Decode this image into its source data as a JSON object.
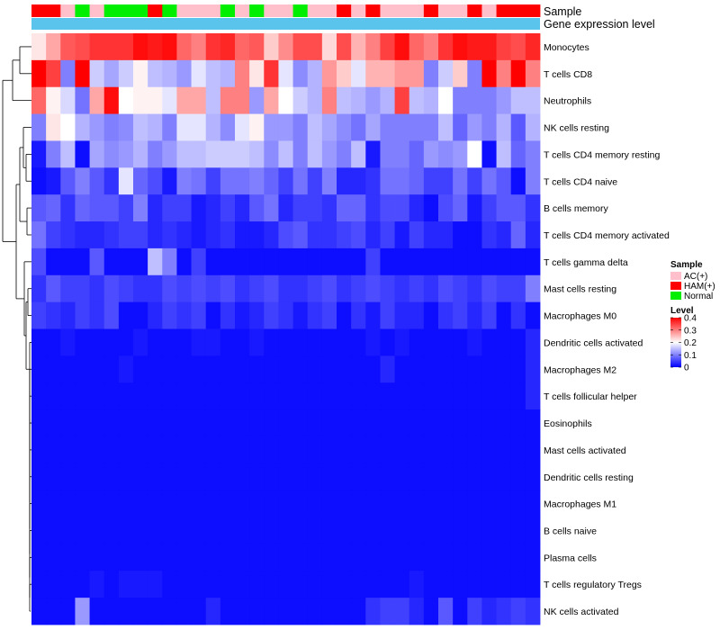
{
  "chart_data": {
    "type": "heatmap",
    "annotation_labels": {
      "sample": "Sample",
      "expression": "Gene expression level"
    },
    "rows": [
      "Monocytes",
      "T cells CD8",
      "Neutrophils",
      "NK cells resting",
      "T cells CD4 memory resting",
      "T cells CD4 naive",
      "B cells memory",
      "T cells CD4 memory activated",
      "T cells gamma delta",
      "Mast cells resting",
      "Macrophages M0",
      "Dendritic cells activated",
      "Macrophages M2",
      "T cells follicular helper",
      "Eosinophils",
      "Mast cells activated",
      "Dendritic cells resting",
      "Macrophages M1",
      "B cells naive",
      "Plasma cells",
      "T cells regulatory  Tregs",
      "NK cells activated"
    ],
    "sample_groups": [
      "HAM",
      "HAM",
      "AC",
      "Normal",
      "AC",
      "Normal",
      "Normal",
      "Normal",
      "HAM",
      "Normal",
      "AC",
      "AC",
      "AC",
      "Normal",
      "AC",
      "Normal",
      "AC",
      "AC",
      "Normal",
      "AC",
      "AC",
      "HAM",
      "AC",
      "HAM",
      "AC",
      "AC",
      "AC",
      "HAM",
      "AC",
      "AC",
      "HAM",
      "AC",
      "HAM",
      "HAM",
      "HAM"
    ],
    "values": [
      [
        0.22,
        0.27,
        0.33,
        0.34,
        0.36,
        0.36,
        0.36,
        0.39,
        0.38,
        0.39,
        0.32,
        0.3,
        0.36,
        0.37,
        0.32,
        0.33,
        0.24,
        0.29,
        0.34,
        0.34,
        0.23,
        0.34,
        0.26,
        0.3,
        0.35,
        0.39,
        0.32,
        0.3,
        0.36,
        0.39,
        0.38,
        0.38,
        0.35,
        0.34,
        0.37
      ],
      [
        0.42,
        0.35,
        0.1,
        0.42,
        0.16,
        0.13,
        0.16,
        0.21,
        0.15,
        0.14,
        0.12,
        0.18,
        0.15,
        0.14,
        0.3,
        0.22,
        0.36,
        0.18,
        0.11,
        0.14,
        0.28,
        0.24,
        0.18,
        0.26,
        0.26,
        0.28,
        0.28,
        0.1,
        0.16,
        0.24,
        0.1,
        0.4,
        0.3,
        0.4,
        0.3
      ],
      [
        0.32,
        0.21,
        0.17,
        0.09,
        0.27,
        0.39,
        0.2,
        0.21,
        0.21,
        0.18,
        0.27,
        0.27,
        0.15,
        0.3,
        0.3,
        0.12,
        0.27,
        0.2,
        0.16,
        0.14,
        0.3,
        0.15,
        0.14,
        0.12,
        0.14,
        0.35,
        0.15,
        0.14,
        0.2,
        0.1,
        0.1,
        0.1,
        0.12,
        0.15,
        0.15
      ],
      [
        0.1,
        0.22,
        0.2,
        0.14,
        0.12,
        0.1,
        0.11,
        0.15,
        0.14,
        0.1,
        0.18,
        0.18,
        0.14,
        0.11,
        0.18,
        0.21,
        0.12,
        0.12,
        0.1,
        0.15,
        0.13,
        0.11,
        0.09,
        0.13,
        0.1,
        0.1,
        0.1,
        0.1,
        0.15,
        0.08,
        0.12,
        0.1,
        0.14,
        0.07,
        0.14
      ],
      [
        0.02,
        0.1,
        0.15,
        0.01,
        0.13,
        0.11,
        0.12,
        0.14,
        0.1,
        0.12,
        0.15,
        0.15,
        0.16,
        0.16,
        0.16,
        0.15,
        0.11,
        0.15,
        0.1,
        0.15,
        0.12,
        0.1,
        0.15,
        0.02,
        0.1,
        0.1,
        0.08,
        0.12,
        0.11,
        0.12,
        0.2,
        0.01,
        0.15,
        0.08,
        0.1
      ],
      [
        0.01,
        0.02,
        0.07,
        0.1,
        0.07,
        0.04,
        0.18,
        0.08,
        0.06,
        0.02,
        0.1,
        0.09,
        0.05,
        0.09,
        0.09,
        0.1,
        0.08,
        0.05,
        0.09,
        0.05,
        0.1,
        0.03,
        0.03,
        0.04,
        0.09,
        0.09,
        0.08,
        0.05,
        0.05,
        0.09,
        0.05,
        0.09,
        0.07,
        0.01,
        0.1
      ],
      [
        0.07,
        0.08,
        0.04,
        0.08,
        0.07,
        0.07,
        0.05,
        0.1,
        0.03,
        0.05,
        0.05,
        0.02,
        0.03,
        0.05,
        0.03,
        0.07,
        0.09,
        0.03,
        0.05,
        0.05,
        0.04,
        0.08,
        0.08,
        0.04,
        0.06,
        0.06,
        0.03,
        0.01,
        0.06,
        0.08,
        0.02,
        0.05,
        0.07,
        0.07,
        0.04
      ],
      [
        0.09,
        0.05,
        0.04,
        0.03,
        0.03,
        0.04,
        0.05,
        0.05,
        0.03,
        0.04,
        0.03,
        0.02,
        0.03,
        0.04,
        0.02,
        0.02,
        0.03,
        0.06,
        0.07,
        0.04,
        0.04,
        0.05,
        0.06,
        0.03,
        0.05,
        0.02,
        0.05,
        0.03,
        0.03,
        0.01,
        0.01,
        0.04,
        0.03,
        0.08,
        0.03
      ],
      [
        0.06,
        0.01,
        0.01,
        0.01,
        0.07,
        0.01,
        0.01,
        0.01,
        0.15,
        0.1,
        0.01,
        0.05,
        0.01,
        0.01,
        0.01,
        0.01,
        0.01,
        0.01,
        0.01,
        0.01,
        0.01,
        0.01,
        0.01,
        0.05,
        0.01,
        0.01,
        0.01,
        0.01,
        0.01,
        0.01,
        0.01,
        0.01,
        0.01,
        0.01,
        0.01
      ],
      [
        0.04,
        0.07,
        0.05,
        0.05,
        0.04,
        0.06,
        0.05,
        0.04,
        0.04,
        0.06,
        0.05,
        0.06,
        0.05,
        0.06,
        0.04,
        0.05,
        0.06,
        0.04,
        0.04,
        0.05,
        0.06,
        0.04,
        0.05,
        0.06,
        0.05,
        0.04,
        0.05,
        0.04,
        0.06,
        0.05,
        0.04,
        0.06,
        0.05,
        0.05,
        0.1
      ],
      [
        0.05,
        0.04,
        0.03,
        0.05,
        0.04,
        0.06,
        0.01,
        0.01,
        0.03,
        0.05,
        0.04,
        0.05,
        0.01,
        0.04,
        0.02,
        0.03,
        0.05,
        0.04,
        0.02,
        0.04,
        0.05,
        0.01,
        0.04,
        0.02,
        0.05,
        0.03,
        0.03,
        0.01,
        0.04,
        0.05,
        0.03,
        0.05,
        0.01,
        0.04,
        0.01
      ],
      [
        0.01,
        0.01,
        0.02,
        0.01,
        0.01,
        0.01,
        0.01,
        0.02,
        0.01,
        0.01,
        0.01,
        0.02,
        0.02,
        0.01,
        0.01,
        0.02,
        0.01,
        0.01,
        0.01,
        0.01,
        0.01,
        0.01,
        0.01,
        0.02,
        0.01,
        0.02,
        0.01,
        0.01,
        0.01,
        0.01,
        0.02,
        0.01,
        0.01,
        0.01,
        0.03
      ],
      [
        0.01,
        0.01,
        0.01,
        0.01,
        0.01,
        0.01,
        0.02,
        0.01,
        0.01,
        0.01,
        0.01,
        0.01,
        0.01,
        0.01,
        0.01,
        0.01,
        0.01,
        0.01,
        0.01,
        0.01,
        0.01,
        0.01,
        0.01,
        0.01,
        0.03,
        0.01,
        0.01,
        0.01,
        0.01,
        0.01,
        0.01,
        0.01,
        0.01,
        0.01,
        0.03
      ],
      [
        0.01,
        0.01,
        0.01,
        0.01,
        0.01,
        0.01,
        0.01,
        0.01,
        0.01,
        0.01,
        0.01,
        0.01,
        0.01,
        0.01,
        0.01,
        0.01,
        0.01,
        0.01,
        0.01,
        0.01,
        0.01,
        0.01,
        0.01,
        0.01,
        0.01,
        0.01,
        0.01,
        0.01,
        0.01,
        0.01,
        0.01,
        0.01,
        0.01,
        0.01,
        0.03
      ],
      [
        0.01,
        0.01,
        0.01,
        0.01,
        0.01,
        0.01,
        0.01,
        0.01,
        0.01,
        0.01,
        0.01,
        0.01,
        0.01,
        0.01,
        0.01,
        0.01,
        0.01,
        0.01,
        0.01,
        0.01,
        0.01,
        0.01,
        0.01,
        0.01,
        0.01,
        0.01,
        0.01,
        0.01,
        0.01,
        0.01,
        0.01,
        0.01,
        0.01,
        0.01,
        0.01
      ],
      [
        0.01,
        0.01,
        0.01,
        0.01,
        0.01,
        0.01,
        0.01,
        0.01,
        0.01,
        0.01,
        0.01,
        0.01,
        0.01,
        0.01,
        0.01,
        0.01,
        0.01,
        0.01,
        0.01,
        0.01,
        0.01,
        0.01,
        0.01,
        0.01,
        0.01,
        0.01,
        0.01,
        0.01,
        0.01,
        0.01,
        0.01,
        0.01,
        0.01,
        0.01,
        0.01
      ],
      [
        0.01,
        0.01,
        0.01,
        0.01,
        0.01,
        0.01,
        0.01,
        0.01,
        0.01,
        0.01,
        0.01,
        0.01,
        0.01,
        0.01,
        0.01,
        0.01,
        0.01,
        0.01,
        0.01,
        0.01,
        0.01,
        0.01,
        0.01,
        0.01,
        0.01,
        0.01,
        0.01,
        0.01,
        0.01,
        0.01,
        0.01,
        0.01,
        0.01,
        0.01,
        0.01
      ],
      [
        0.01,
        0.01,
        0.01,
        0.01,
        0.01,
        0.01,
        0.01,
        0.01,
        0.01,
        0.01,
        0.01,
        0.01,
        0.01,
        0.01,
        0.01,
        0.01,
        0.01,
        0.01,
        0.01,
        0.01,
        0.01,
        0.01,
        0.01,
        0.01,
        0.01,
        0.01,
        0.01,
        0.01,
        0.01,
        0.01,
        0.01,
        0.01,
        0.01,
        0.01,
        0.01
      ],
      [
        0.01,
        0.01,
        0.01,
        0.01,
        0.01,
        0.01,
        0.01,
        0.01,
        0.01,
        0.01,
        0.01,
        0.01,
        0.01,
        0.01,
        0.01,
        0.01,
        0.01,
        0.01,
        0.01,
        0.01,
        0.01,
        0.01,
        0.01,
        0.01,
        0.01,
        0.01,
        0.01,
        0.01,
        0.01,
        0.01,
        0.01,
        0.01,
        0.01,
        0.01,
        0.01
      ],
      [
        0.01,
        0.01,
        0.01,
        0.01,
        0.01,
        0.01,
        0.01,
        0.01,
        0.01,
        0.01,
        0.01,
        0.01,
        0.01,
        0.01,
        0.01,
        0.01,
        0.01,
        0.01,
        0.01,
        0.01,
        0.01,
        0.01,
        0.01,
        0.01,
        0.01,
        0.01,
        0.01,
        0.01,
        0.01,
        0.01,
        0.01,
        0.01,
        0.01,
        0.01,
        0.01
      ],
      [
        0.01,
        0.01,
        0.01,
        0.01,
        0.02,
        0.01,
        0.02,
        0.02,
        0.02,
        0.01,
        0.01,
        0.01,
        0.01,
        0.01,
        0.01,
        0.01,
        0.01,
        0.01,
        0.01,
        0.01,
        0.01,
        0.01,
        0.01,
        0.01,
        0.01,
        0.01,
        0.02,
        0.01,
        0.01,
        0.01,
        0.01,
        0.01,
        0.01,
        0.01,
        0.01
      ],
      [
        0.01,
        0.01,
        0.01,
        0.12,
        0.01,
        0.01,
        0.01,
        0.01,
        0.01,
        0.01,
        0.01,
        0.01,
        0.03,
        0.01,
        0.01,
        0.01,
        0.01,
        0.01,
        0.01,
        0.01,
        0.01,
        0.01,
        0.01,
        0.04,
        0.05,
        0.05,
        0.03,
        0.01,
        0.07,
        0.01,
        0.05,
        0.03,
        0.04,
        0.05,
        0.04
      ]
    ],
    "expression_color": "#5bc4ec",
    "group_colors": {
      "AC": "#ffc0cb",
      "HAM": "#ff0000",
      "Normal": "#00ee00"
    },
    "legend": {
      "sample_title": "Sample",
      "sample_entries": [
        {
          "key": "AC",
          "label": "AC(+)"
        },
        {
          "key": "HAM",
          "label": "HAM(+)"
        },
        {
          "key": "Normal",
          "label": "Normal"
        }
      ],
      "level_title": "Level",
      "level_ticks": [
        "0.4",
        "0.3",
        "0.2",
        "0.1",
        "0"
      ],
      "level_range": [
        0,
        0.4
      ]
    },
    "color_scale": {
      "low": "#0000ff",
      "mid": "#ffffff",
      "high": "#ff0000"
    }
  }
}
